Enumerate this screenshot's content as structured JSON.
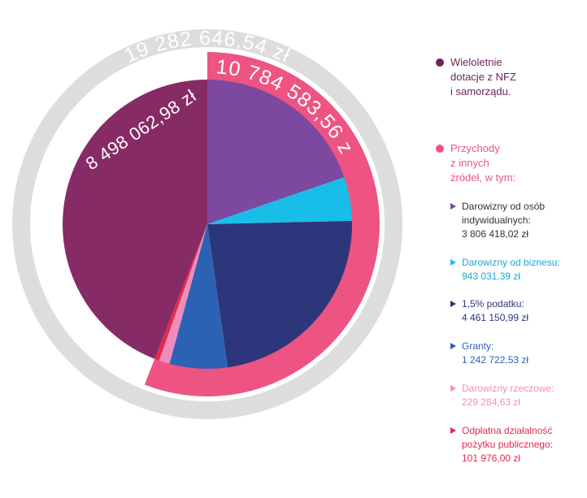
{
  "chart_data": {
    "type": "pie",
    "outer_ring": {
      "label": "19 282 646,54 zł",
      "value": 19282646.54,
      "color": "#dddddd"
    },
    "groups": [
      {
        "label": "8 498 062,98 zł",
        "value": 8498062.98,
        "color": "#872b66"
      },
      {
        "label": "10 784 583,56 zł",
        "value": 10784583.56,
        "color": "#ee5483"
      }
    ],
    "slices": [
      {
        "name": "Darowizny od osób indywidualnych",
        "value": 3806418.02,
        "color": "#7d48a0"
      },
      {
        "name": "Darowizny od biznesu",
        "value": 943031.39,
        "color": "#18bde8"
      },
      {
        "name": "1,5% podatku",
        "value": 4461150.99,
        "color": "#2d367a"
      },
      {
        "name": "Granty",
        "value": 1242722.53,
        "color": "#2c62b3"
      },
      {
        "name": "Darowizny rzeczowe",
        "value": 229284.63,
        "color": "#f08cbc"
      },
      {
        "name": "Odpłatna działalność pożytku publicznego",
        "value": 101976.0,
        "color": "#e32a4c"
      },
      {
        "name": "Wieloletnie dotacje z NFZ i samorządu",
        "value": 8498062.98,
        "color": "#872b66"
      }
    ]
  },
  "legend": {
    "main": [
      {
        "text": "Wieloletnie\ndotacje z NFZ\ni samorządu.",
        "color": "#6f2459"
      },
      {
        "text": "Przychody\nz innych\nźródeł, w tym:",
        "color": "#ee5483"
      }
    ],
    "items": [
      {
        "text": "Darowizny od osób\nindywidualnych:",
        "value": "3 806 418,02 zł",
        "color": "#7d48a0",
        "text_color": "#333333"
      },
      {
        "text": "Darowizny od biznesu:",
        "value": "943 031,39 zł",
        "color": "#18bde8",
        "text_color": "#18a9d6"
      },
      {
        "text": "1,5% podatku:",
        "value": "4 461 150,99 zł",
        "color": "#2d367a",
        "text_color": "#2d367a"
      },
      {
        "text": "Granty:",
        "value": "1 242 722,53 zł",
        "color": "#2c62b3",
        "text_color": "#2c62b3"
      },
      {
        "text": "Darowizny rzeczowe:",
        "value": "229 284,63 zł",
        "color": "#f08cbc",
        "text_color": "#f08cbc"
      },
      {
        "text": "Odpłatna działalność\npożytku publicznego:",
        "value": "101 976,00 zł",
        "color": "#e32a4c",
        "text_color": "#e32a4c"
      }
    ]
  }
}
